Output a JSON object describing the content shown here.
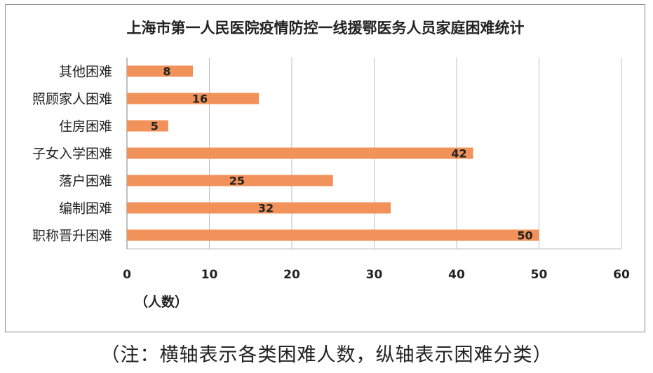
{
  "chart_data": {
    "type": "bar",
    "orientation": "horizontal",
    "title": "上海市第一人民医院疫情防控一线援鄂医务人员家庭困难统计",
    "xlabel": "（人数）",
    "ylabel": "",
    "categories": [
      "其他困难",
      "照顾家人困难",
      "住房困难",
      "子女入学困难",
      "落户困难",
      "编制困难",
      "职称晋升困难"
    ],
    "values": [
      8,
      16,
      5,
      42,
      25,
      32,
      50
    ],
    "xlim": [
      0,
      60
    ],
    "xticks": [
      0,
      10,
      20,
      30,
      40,
      50,
      60
    ],
    "grid": "vertical",
    "legend": "none",
    "data_labels": true,
    "colors": {
      "bar": "#f0925a",
      "grid": "#bfbfbf",
      "axis": "#7f7f7f",
      "text": "#222222"
    }
  },
  "footnote": "（注：横轴表示各类困难人数，纵轴表示困难分类）"
}
